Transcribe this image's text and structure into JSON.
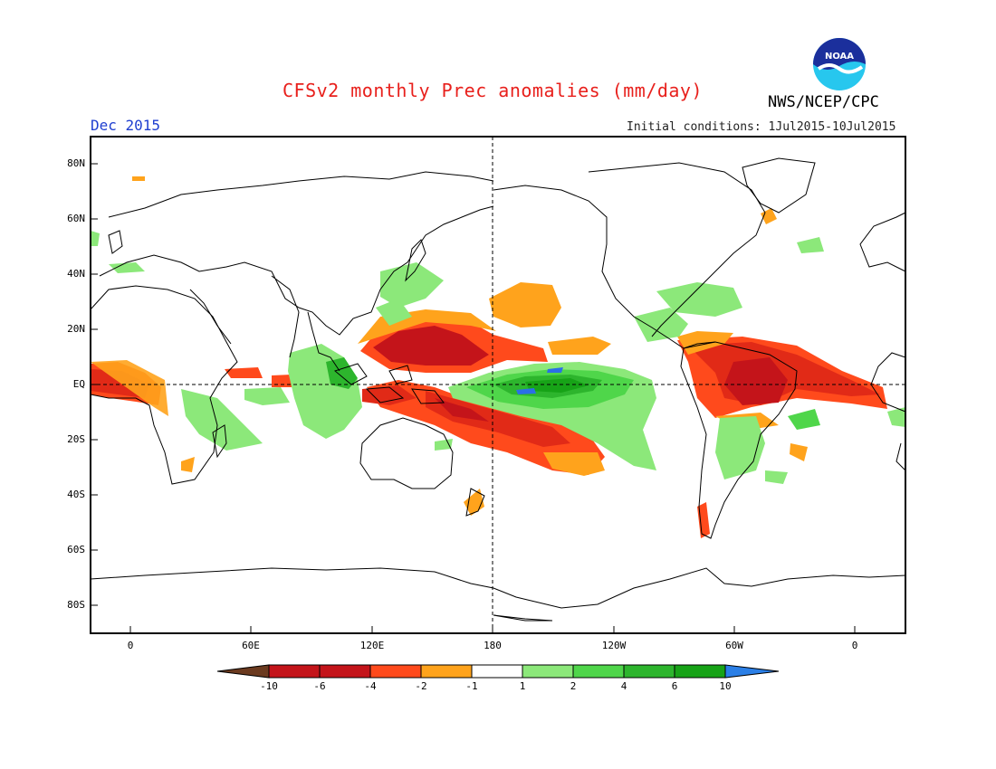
{
  "header": {
    "title": "CFSv2 monthly Prec anomalies (mm/day)",
    "agency": "NWS/NCEP/CPC",
    "month": "Dec 2015",
    "initial_conditions_label": "Initial conditions:",
    "initial_conditions_value": "1Jul2015-10Jul2015"
  },
  "logo": {
    "text": "NOAA",
    "icon": "noaa-logo-icon"
  },
  "map": {
    "projection": "cylindrical equidistant",
    "lat_labels": [
      "80N",
      "60N",
      "40N",
      "20N",
      "EQ",
      "20S",
      "40S",
      "60S",
      "80S"
    ],
    "lon_labels": [
      "0",
      "60E",
      "120E",
      "180",
      "120W",
      "60W",
      "0"
    ],
    "reference_lines": [
      "equator",
      "dateline"
    ]
  },
  "colorbar": {
    "labels": [
      "-10",
      "-6",
      "-4",
      "-2",
      "-1",
      "1",
      "2",
      "4",
      "6",
      "10"
    ],
    "colors": [
      "#6b3a1f",
      "#c4141a",
      "#c4141a",
      "#ff5a1f",
      "#ffa31c",
      "#ffffff",
      "#8ce87a",
      "#4fd64a",
      "#2db52d",
      "#17a317",
      "#2b7fe6"
    ]
  },
  "palette": {
    "dry_strong": "#c4141a",
    "dry_mid": "#ff4a1c",
    "dry_weak": "#ffa31c",
    "wet_weak": "#8ce87a",
    "wet_mid": "#4fd64a",
    "wet_strong": "#1f9f1f",
    "wet_extreme": "#2b6fe6"
  }
}
